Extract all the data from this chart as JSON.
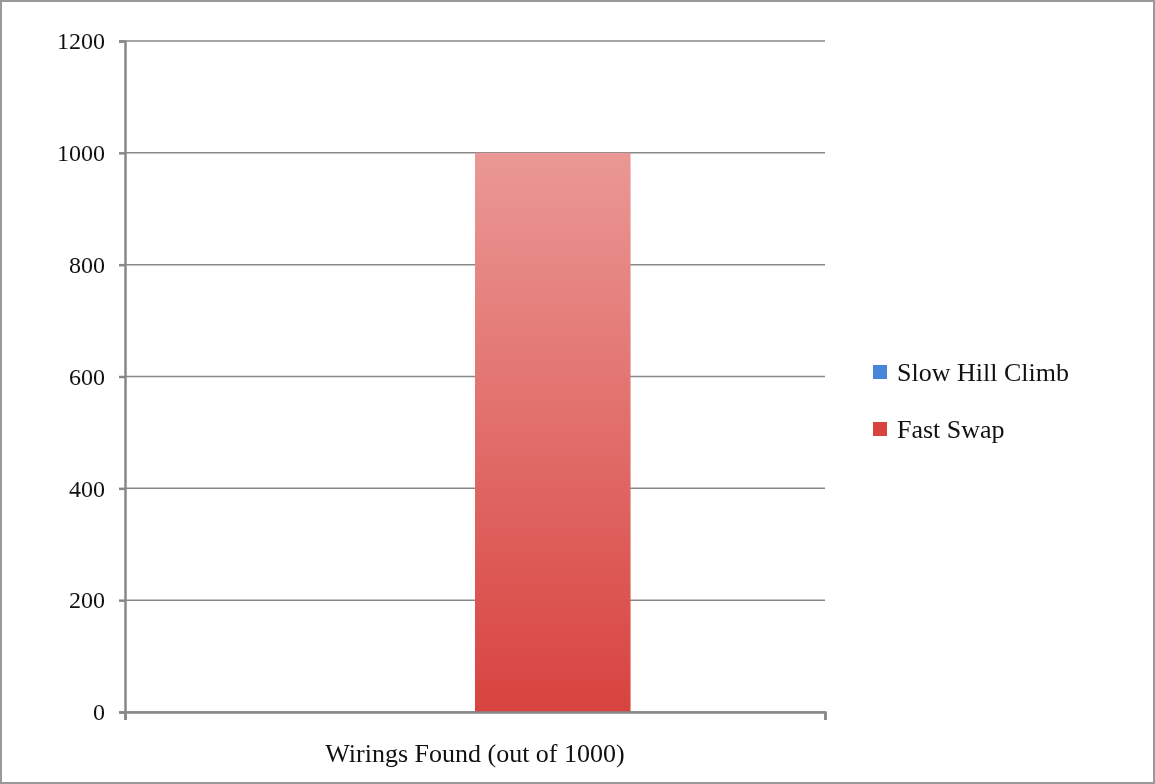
{
  "chart_data": {
    "type": "bar",
    "categories": [
      "Wirings Found (out of 1000)"
    ],
    "series": [
      {
        "name": "Slow Hill Climb",
        "color": "#4a86d8",
        "values": [
          0
        ]
      },
      {
        "name": "Fast Swap",
        "color": "#d8433f",
        "values": [
          1000
        ]
      }
    ],
    "ylim": [
      0,
      1200
    ],
    "yticks": [
      0,
      200,
      400,
      600,
      800,
      1000,
      1200
    ],
    "grid": "y",
    "legend": "right"
  }
}
